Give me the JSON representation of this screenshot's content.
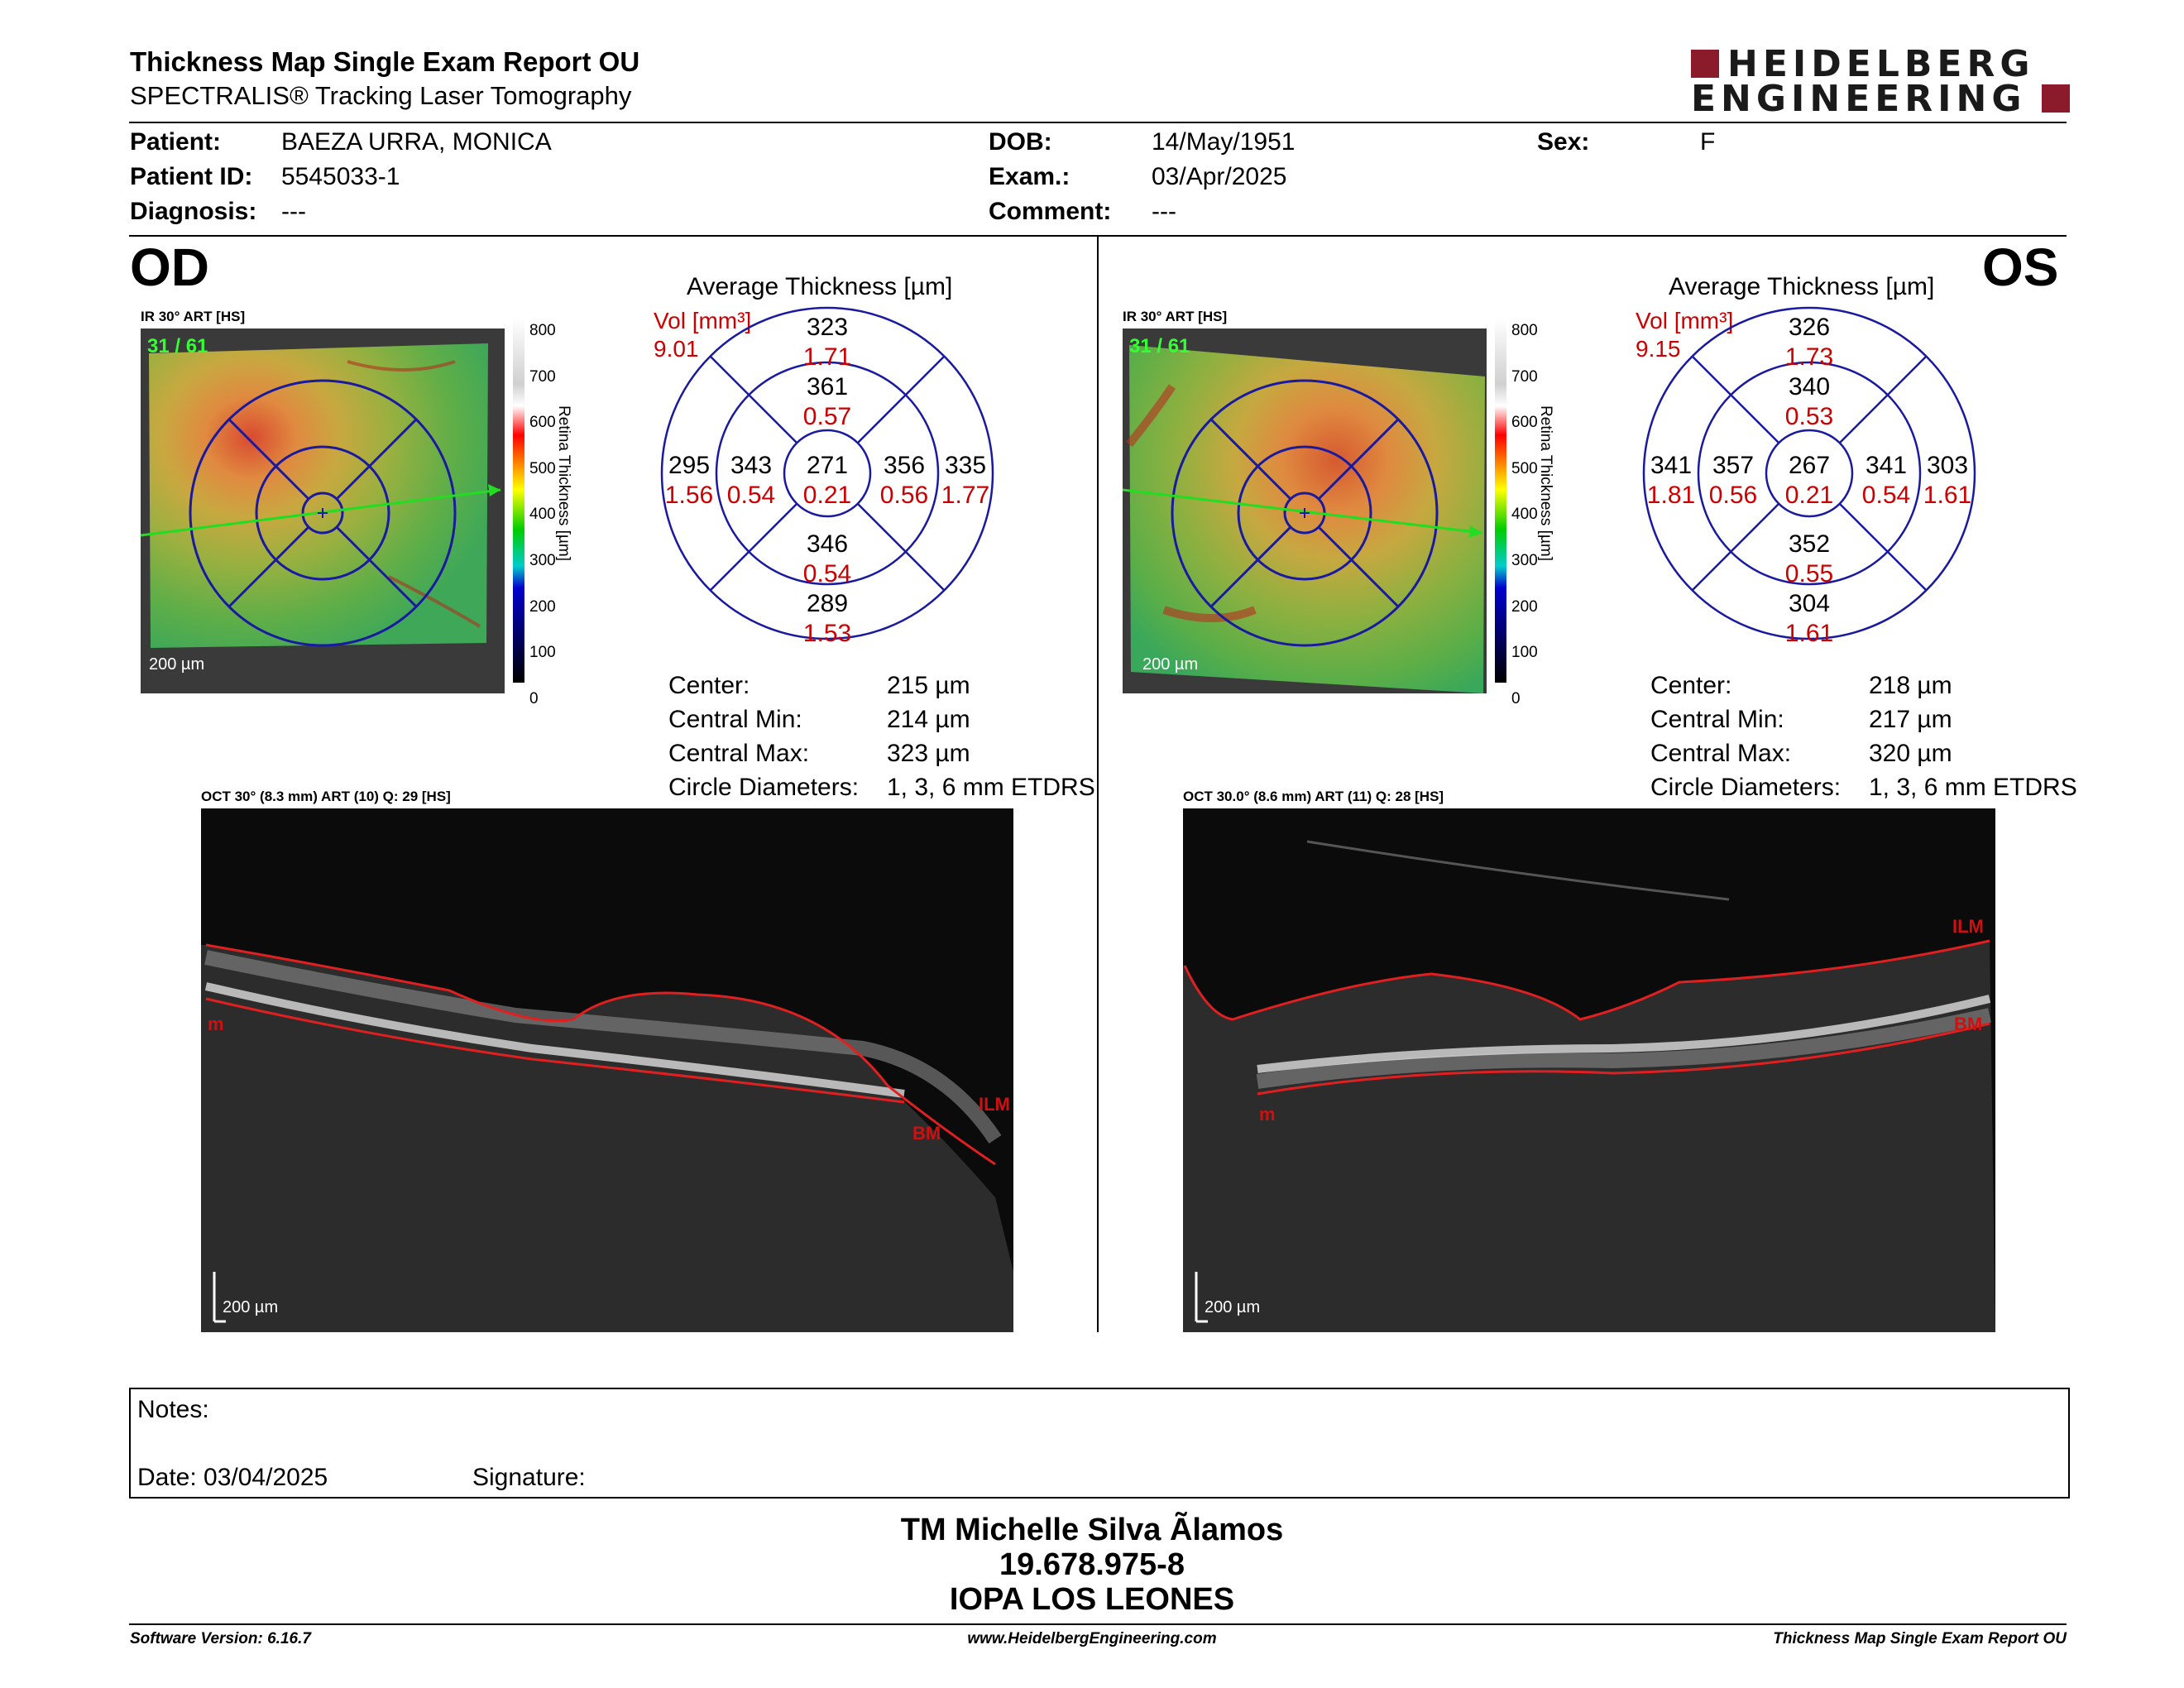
{
  "report": {
    "title": "Thickness Map Single Exam Report OU",
    "subtitle": "SPECTRALIS® Tracking Laser Tomography",
    "logo_line1": "HEIDELBERG",
    "logo_line2": "ENGINEERING",
    "colors": {
      "logo_red": "#8b1a2b",
      "volume_red": "#cc0000",
      "grid_blue": "#1a1aa0"
    }
  },
  "patient": {
    "patient_label": "Patient:",
    "patient_value": "BAEZA URRA, MONICA",
    "id_label": "Patient ID:",
    "id_value": "5545033-1",
    "diagnosis_label": "Diagnosis:",
    "diagnosis_value": "---",
    "dob_label": "DOB:",
    "dob_value": "14/May/1951",
    "exam_label": "Exam.:",
    "exam_value": "03/Apr/2025",
    "comment_label": "Comment:",
    "comment_value": "---",
    "sex_label": "Sex:",
    "sex_value": "F"
  },
  "od": {
    "eye_label": "OD",
    "ir_caption": "IR 30° ART [HS]",
    "frame_label": "31 / 61",
    "scale_label": "200 µm",
    "colorbar_ticks": [
      "800",
      "700",
      "600",
      "500",
      "400",
      "300",
      "200",
      "100",
      "0"
    ],
    "colorbar_title": "Retina  Thickness [µm]",
    "avg_title": "Average Thickness [µm]",
    "vol_label": "Vol [mm³]",
    "vol_total": "9.01",
    "etdrs": {
      "outer_top": {
        "t": "323",
        "v": "1.71"
      },
      "inner_top": {
        "t": "361",
        "v": "0.57"
      },
      "outer_left": {
        "t": "295",
        "v": "1.56"
      },
      "inner_left": {
        "t": "343",
        "v": "0.54"
      },
      "center": {
        "t": "271",
        "v": "0.21"
      },
      "inner_right": {
        "t": "356",
        "v": "0.56"
      },
      "outer_right": {
        "t": "335",
        "v": "1.77"
      },
      "inner_bottom": {
        "t": "346",
        "v": "0.54"
      },
      "outer_bottom": {
        "t": "289",
        "v": "1.53"
      }
    },
    "stats": {
      "center_label": "Center:",
      "center_value": "215 µm",
      "min_label": "Central Min:",
      "min_value": "214 µm",
      "max_label": "Central Max:",
      "max_value": "323 µm",
      "diam_label": "Circle Diameters:",
      "diam_value": "1, 3, 6 mm ETDRS"
    },
    "oct_caption": "OCT 30° (8.3 mm) ART (10) Q: 29 [HS]",
    "oct_scale": "200 µm",
    "ilm_label": "ILM",
    "bm_label": "BM",
    "m_label": "m"
  },
  "os": {
    "eye_label": "OS",
    "ir_caption": "IR 30° ART [HS]",
    "frame_label": "31 / 61",
    "scale_label": "200 µm",
    "colorbar_ticks": [
      "800",
      "700",
      "600",
      "500",
      "400",
      "300",
      "200",
      "100",
      "0"
    ],
    "colorbar_title": "Retina  Thickness [µm]",
    "avg_title": "Average Thickness [µm]",
    "vol_label": "Vol [mm³]",
    "vol_total": "9.15",
    "etdrs": {
      "outer_top": {
        "t": "326",
        "v": "1.73"
      },
      "inner_top": {
        "t": "340",
        "v": "0.53"
      },
      "outer_left": {
        "t": "341",
        "v": "1.81"
      },
      "inner_left": {
        "t": "357",
        "v": "0.56"
      },
      "center": {
        "t": "267",
        "v": "0.21"
      },
      "inner_right": {
        "t": "341",
        "v": "0.54"
      },
      "outer_right": {
        "t": "303",
        "v": "1.61"
      },
      "inner_bottom": {
        "t": "352",
        "v": "0.55"
      },
      "outer_bottom": {
        "t": "304",
        "v": "1.61"
      }
    },
    "stats": {
      "center_label": "Center:",
      "center_value": "218 µm",
      "min_label": "Central Min:",
      "min_value": "217 µm",
      "max_label": "Central Max:",
      "max_value": "320 µm",
      "diam_label": "Circle Diameters:",
      "diam_value": "1, 3, 6 mm ETDRS"
    },
    "oct_caption": "OCT 30.0° (8.6 mm) ART (11) Q: 28 [HS]",
    "oct_scale": "200 µm",
    "ilm_label": "ILM",
    "bm_label": "BM",
    "m_label": "m"
  },
  "notes": {
    "notes_label": "Notes:",
    "date_label": "Date: 03/04/2025",
    "signature_label": "Signature:"
  },
  "signoff": {
    "name": "TM Michelle Silva Ãlamos",
    "rut": "19.678.975-8",
    "institution": "IOPA LOS LEONES"
  },
  "footer": {
    "software": "Software Version: 6.16.7",
    "website": "www.HeidelbergEngineering.com",
    "report_name": "Thickness Map Single Exam Report OU"
  }
}
